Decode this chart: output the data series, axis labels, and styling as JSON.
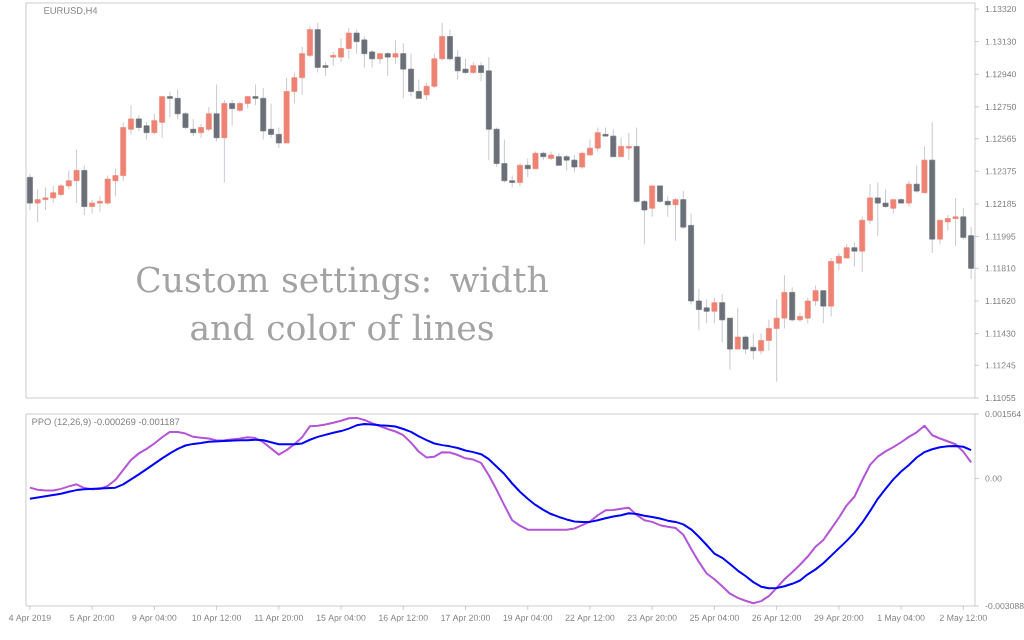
{
  "chart_data": [
    {
      "type": "candlestick",
      "title": "EURUSD,H4",
      "annotations": [
        "Custom settings: width and color of lines"
      ],
      "categories": [
        null,
        null,
        null,
        null,
        null,
        null,
        null,
        null,
        null,
        null,
        null,
        null,
        null,
        null,
        null,
        null,
        null,
        null,
        null,
        null,
        null,
        null,
        null,
        null,
        null,
        null,
        null,
        null,
        null,
        null,
        null,
        null,
        null,
        null,
        null,
        null,
        null,
        null,
        null,
        null,
        null,
        null,
        null,
        null,
        null,
        null,
        null,
        null,
        null,
        null,
        null,
        null,
        null,
        null,
        null,
        null,
        null,
        null,
        null,
        null,
        null,
        null,
        null,
        null,
        null,
        null,
        null,
        null,
        null,
        null,
        null,
        null,
        null,
        null,
        null,
        null,
        null,
        null,
        null,
        null,
        null,
        null,
        null,
        null,
        null,
        null,
        null,
        null,
        null,
        null,
        null,
        null,
        null,
        null,
        null,
        null,
        null,
        null,
        null,
        null,
        null,
        null,
        null,
        null,
        null,
        null,
        null,
        null,
        null,
        null,
        null,
        null,
        null,
        null,
        null,
        null,
        null,
        null,
        null,
        null,
        null,
        null
      ],
      "ohlc": [
        [
          1.1234,
          1.1236,
          1.1215,
          1.1219
        ],
        [
          1.1219,
          1.1227,
          1.1208,
          1.1221
        ],
        [
          1.1221,
          1.1228,
          1.1215,
          1.1222
        ],
        [
          1.1222,
          1.1229,
          1.1219,
          1.1225
        ],
        [
          1.1224,
          1.123,
          1.1223,
          1.1229
        ],
        [
          1.1229,
          1.1238,
          1.1227,
          1.1232
        ],
        [
          1.1232,
          1.125,
          1.1219,
          1.1238
        ],
        [
          1.1238,
          1.1241,
          1.1212,
          1.1217
        ],
        [
          1.1217,
          1.1221,
          1.1213,
          1.1219
        ],
        [
          1.1219,
          1.1223,
          1.1214,
          1.122
        ],
        [
          1.1219,
          1.1235,
          1.1218,
          1.1233
        ],
        [
          1.1232,
          1.1239,
          1.1223,
          1.1235
        ],
        [
          1.1235,
          1.1266,
          1.1232,
          1.1263
        ],
        [
          1.1262,
          1.1276,
          1.1259,
          1.1268
        ],
        [
          1.1268,
          1.127,
          1.1261,
          1.1263
        ],
        [
          1.1264,
          1.1266,
          1.1256,
          1.126
        ],
        [
          1.126,
          1.1271,
          1.1259,
          1.1267
        ],
        [
          1.1266,
          1.1281,
          1.1257,
          1.1281
        ],
        [
          1.1281,
          1.1284,
          1.1269,
          1.128
        ],
        [
          1.128,
          1.1285,
          1.1268,
          1.1271
        ],
        [
          1.1271,
          1.1272,
          1.1262,
          1.1263
        ],
        [
          1.1262,
          1.1268,
          1.1258,
          1.126
        ],
        [
          1.126,
          1.1265,
          1.1257,
          1.1263
        ],
        [
          1.1262,
          1.1275,
          1.1261,
          1.1271
        ],
        [
          1.1271,
          1.1288,
          1.1255,
          1.1257
        ],
        [
          1.1257,
          1.1279,
          1.1231,
          1.1277
        ],
        [
          1.1277,
          1.1279,
          1.1264,
          1.1274
        ],
        [
          1.1273,
          1.1278,
          1.1272,
          1.1277
        ],
        [
          1.1277,
          1.1281,
          1.1274,
          1.1281
        ],
        [
          1.1281,
          1.1288,
          1.1276,
          1.128
        ],
        [
          1.128,
          1.1286,
          1.1256,
          1.1261
        ],
        [
          1.1262,
          1.1277,
          1.1257,
          1.1259
        ],
        [
          1.1259,
          1.1263,
          1.1251,
          1.1254
        ],
        [
          1.1254,
          1.1292,
          1.1254,
          1.1284
        ],
        [
          1.1284,
          1.1295,
          1.1277,
          1.1292
        ],
        [
          1.1292,
          1.131,
          1.1282,
          1.1306
        ],
        [
          1.1305,
          1.1322,
          1.1304,
          1.132
        ],
        [
          1.132,
          1.1324,
          1.1295,
          1.1298
        ],
        [
          1.1299,
          1.1301,
          1.1293,
          1.1298
        ],
        [
          1.1304,
          1.1307,
          1.1299,
          1.1305
        ],
        [
          1.1304,
          1.1315,
          1.1301,
          1.1309
        ],
        [
          1.1309,
          1.1321,
          1.1303,
          1.1318
        ],
        [
          1.1318,
          1.132,
          1.1306,
          1.1313
        ],
        [
          1.1314,
          1.1316,
          1.1298,
          1.1306
        ],
        [
          1.1307,
          1.1308,
          1.1298,
          1.1303
        ],
        [
          1.1303,
          1.1306,
          1.13,
          1.1306
        ],
        [
          1.1306,
          1.1307,
          1.1293,
          1.1304
        ],
        [
          1.1304,
          1.1314,
          1.13,
          1.1306
        ],
        [
          1.1306,
          1.1312,
          1.128,
          1.1297
        ],
        [
          1.1297,
          1.1306,
          1.1281,
          1.1284
        ],
        [
          1.1284,
          1.1291,
          1.128,
          1.128
        ],
        [
          1.1282,
          1.1289,
          1.1279,
          1.1287
        ],
        [
          1.1287,
          1.1306,
          1.1286,
          1.1303
        ],
        [
          1.1303,
          1.1324,
          1.1302,
          1.1316
        ],
        [
          1.1316,
          1.132,
          1.1302,
          1.1303
        ],
        [
          1.1304,
          1.1308,
          1.1291,
          1.1296
        ],
        [
          1.1297,
          1.1303,
          1.1294,
          1.1295
        ],
        [
          1.1295,
          1.1301,
          1.1294,
          1.1299
        ],
        [
          1.1299,
          1.1301,
          1.129,
          1.1295
        ],
        [
          1.1296,
          1.1304,
          1.1244,
          1.1262
        ],
        [
          1.1262,
          1.1263,
          1.124,
          1.1242
        ],
        [
          1.1242,
          1.1256,
          1.1231,
          1.1232
        ],
        [
          1.1232,
          1.1235,
          1.1228,
          1.1231
        ],
        [
          1.1231,
          1.1242,
          1.1229,
          1.1241
        ],
        [
          1.1241,
          1.1245,
          1.1234,
          1.1239
        ],
        [
          1.1239,
          1.1249,
          1.1239,
          1.1248
        ],
        [
          1.1248,
          1.1249,
          1.1244,
          1.1246
        ],
        [
          1.1245,
          1.1249,
          1.1244,
          1.1247
        ],
        [
          1.1246,
          1.1248,
          1.1241,
          1.1241
        ],
        [
          1.1246,
          1.1247,
          1.1238,
          1.1244
        ],
        [
          1.1244,
          1.1247,
          1.1237,
          1.124
        ],
        [
          1.124,
          1.1249,
          1.1239,
          1.1248
        ],
        [
          1.1247,
          1.1256,
          1.1247,
          1.1251
        ],
        [
          1.1251,
          1.1263,
          1.1249,
          1.126
        ],
        [
          1.1259,
          1.1263,
          1.1258,
          1.1258
        ],
        [
          1.1258,
          1.1262,
          1.1246,
          1.1246
        ],
        [
          1.1246,
          1.1257,
          1.1246,
          1.1252
        ],
        [
          1.1251,
          1.126,
          1.1244,
          1.1252
        ],
        [
          1.1252,
          1.1263,
          1.1219,
          1.122
        ],
        [
          1.122,
          1.1221,
          1.1195,
          1.1215
        ],
        [
          1.1216,
          1.1229,
          1.1211,
          1.1229
        ],
        [
          1.1229,
          1.1229,
          1.1219,
          1.122
        ],
        [
          1.122,
          1.1223,
          1.1211,
          1.1218
        ],
        [
          1.1218,
          1.1222,
          1.1197,
          1.1221
        ],
        [
          1.1221,
          1.1226,
          1.1204,
          1.1205
        ],
        [
          1.1206,
          1.1213,
          1.116,
          1.1162
        ],
        [
          1.1162,
          1.1169,
          1.1145,
          1.1157
        ],
        [
          1.1158,
          1.1163,
          1.1149,
          1.1156
        ],
        [
          1.1156,
          1.1164,
          1.1149,
          1.1161
        ],
        [
          1.1161,
          1.1166,
          1.1138,
          1.1151
        ],
        [
          1.1152,
          1.1152,
          1.1122,
          1.1134
        ],
        [
          1.1134,
          1.1158,
          1.1134,
          1.1141
        ],
        [
          1.1141,
          1.1142,
          1.1131,
          1.1134
        ],
        [
          1.1135,
          1.1143,
          1.1128,
          1.1133
        ],
        [
          1.1133,
          1.1143,
          1.1131,
          1.1139
        ],
        [
          1.1139,
          1.1151,
          1.1133,
          1.1146
        ],
        [
          1.1146,
          1.1163,
          1.1115,
          1.1152
        ],
        [
          1.1152,
          1.1177,
          1.1146,
          1.1167
        ],
        [
          1.1167,
          1.117,
          1.115,
          1.1151
        ],
        [
          1.1151,
          1.1155,
          1.115,
          1.1153
        ],
        [
          1.1152,
          1.1164,
          1.1149,
          1.1162
        ],
        [
          1.1162,
          1.1171,
          1.1159,
          1.1168
        ],
        [
          1.1168,
          1.1168,
          1.1149,
          1.1159
        ],
        [
          1.1159,
          1.1187,
          1.1153,
          1.1185
        ],
        [
          1.1184,
          1.119,
          1.118,
          1.1188
        ],
        [
          1.1187,
          1.1195,
          1.1187,
          1.1193
        ],
        [
          1.1193,
          1.1196,
          1.1182,
          1.1191
        ],
        [
          1.1191,
          1.1211,
          1.1179,
          1.1209
        ],
        [
          1.1209,
          1.123,
          1.1207,
          1.1222
        ],
        [
          1.1222,
          1.1231,
          1.12,
          1.1219
        ],
        [
          1.1219,
          1.1227,
          1.1216,
          1.1217
        ],
        [
          1.1216,
          1.1221,
          1.1213,
          1.1221
        ],
        [
          1.1221,
          1.1222,
          1.1219,
          1.1219
        ],
        [
          1.1219,
          1.1232,
          1.1217,
          1.123
        ],
        [
          1.123,
          1.1241,
          1.1225,
          1.1226
        ],
        [
          1.1225,
          1.1252,
          1.1225,
          1.1244
        ],
        [
          1.1244,
          1.1266,
          1.119,
          1.1198
        ],
        [
          1.1198,
          1.1209,
          1.1195,
          1.1209
        ],
        [
          1.1208,
          1.1212,
          1.1203,
          1.121
        ],
        [
          1.121,
          1.1222,
          1.1194,
          1.1211
        ],
        [
          1.1211,
          1.1216,
          1.1198,
          1.1199
        ],
        [
          1.12,
          1.1205,
          1.1175,
          1.1181
        ]
      ],
      "colors": [
        "#6b7078",
        "#ee8374",
        "#ee8374",
        "#ee8374",
        "#ee8374",
        "#ee8374",
        "#ee8374",
        "#6b7078",
        "#ee8374",
        "#ee8374",
        "#ee8374",
        "#ee8374",
        "#ee8374",
        "#ee8374",
        "#6b7078",
        "#6b7078",
        "#ee8374",
        "#ee8374",
        "#6b7078",
        "#6b7078",
        "#6b7078",
        "#6b7078",
        "#ee8374",
        "#ee8374",
        "#6b7078",
        "#ee8374",
        "#6b7078",
        "#ee8374",
        "#ee8374",
        "#6b7078",
        "#6b7078",
        "#6b7078",
        "#6b7078",
        "#ee8374",
        "#ee8374",
        "#ee8374",
        "#ee8374",
        "#6b7078",
        "#6b7078",
        "#ee8374",
        "#ee8374",
        "#ee8374",
        "#6b7078",
        "#6b7078",
        "#6b7078",
        "#ee8374",
        "#6b7078",
        "#ee8374",
        "#6b7078",
        "#6b7078",
        "#6b7078",
        "#ee8374",
        "#ee8374",
        "#ee8374",
        "#6b7078",
        "#6b7078",
        "#6b7078",
        "#ee8374",
        "#6b7078",
        "#6b7078",
        "#6b7078",
        "#6b7078",
        "#6b7078",
        "#ee8374",
        "#6b7078",
        "#ee8374",
        "#6b7078",
        "#ee8374",
        "#6b7078",
        "#6b7078",
        "#6b7078",
        "#ee8374",
        "#ee8374",
        "#ee8374",
        "#6b7078",
        "#6b7078",
        "#ee8374",
        "#ee8374",
        "#6b7078",
        "#6b7078",
        "#ee8374",
        "#6b7078",
        "#6b7078",
        "#ee8374",
        "#6b7078",
        "#6b7078",
        "#6b7078",
        "#6b7078",
        "#ee8374",
        "#6b7078",
        "#6b7078",
        "#ee8374",
        "#6b7078",
        "#6b7078",
        "#ee8374",
        "#ee8374",
        "#ee8374",
        "#ee8374",
        "#6b7078",
        "#ee8374",
        "#ee8374",
        "#ee8374",
        "#6b7078",
        "#ee8374",
        "#ee8374",
        "#ee8374",
        "#6b7078",
        "#ee8374",
        "#ee8374",
        "#6b7078",
        "#6b7078",
        "#ee8374",
        "#6b7078",
        "#ee8374",
        "#6b7078",
        "#ee8374",
        "#6b7078",
        "#ee8374",
        "#ee8374",
        "#ee8374",
        "#6b7078",
        "#6b7078"
      ],
      "ylim": [
        1.11055,
        1.13355
      ],
      "yticks": [
        {
          "value": 1.11055,
          "label": "1.11055"
        },
        {
          "value": 1.11245,
          "label": "1.11245"
        },
        {
          "value": 1.1143,
          "label": "1.11430"
        },
        {
          "value": 1.1162,
          "label": "1.11620"
        },
        {
          "value": 1.1181,
          "label": "1.11810"
        },
        {
          "value": 1.11995,
          "label": "1.11995"
        },
        {
          "value": 1.12185,
          "label": "1.12185"
        },
        {
          "value": 1.12375,
          "label": "1.12375"
        },
        {
          "value": 1.12565,
          "label": "1.12565"
        },
        {
          "value": 1.1275,
          "label": "1.12750"
        },
        {
          "value": 1.1294,
          "label": "1.12940"
        },
        {
          "value": 1.1313,
          "label": "1.13130"
        },
        {
          "value": 1.1332,
          "label": "1.13320"
        }
      ],
      "tick_labels": "y"
    },
    {
      "type": "line",
      "title": "PPO (12,26,9) -0.000269 -0.001187",
      "categories": [
        "4 Apr 2019",
        null,
        null,
        null,
        null,
        null,
        null,
        null,
        "5 Apr 20:00",
        null,
        null,
        null,
        null,
        null,
        null,
        null,
        "9 Apr 04:00",
        null,
        null,
        null,
        null,
        null,
        null,
        null,
        "10 Apr 12:00",
        null,
        null,
        null,
        null,
        null,
        null,
        null,
        "11 Apr 20:00",
        null,
        null,
        null,
        null,
        null,
        null,
        null,
        "15 Apr 04:00",
        null,
        null,
        null,
        null,
        null,
        null,
        null,
        "16 Apr 12:00",
        null,
        null,
        null,
        null,
        null,
        null,
        null,
        "17 Apr 20:00",
        null,
        null,
        null,
        null,
        null,
        null,
        null,
        "19 Apr 04:00",
        null,
        null,
        null,
        null,
        null,
        null,
        null,
        "22 Apr 12:00",
        null,
        null,
        null,
        null,
        null,
        null,
        null,
        "23 Apr 20:00",
        null,
        null,
        null,
        null,
        null,
        null,
        null,
        "25 Apr 04:00",
        null,
        null,
        null,
        null,
        null,
        null,
        null,
        "26 Apr 12:00",
        null,
        null,
        null,
        null,
        null,
        null,
        null,
        "29 Apr 20:00",
        null,
        null,
        null,
        null,
        null,
        null,
        null,
        "1 May 04:00",
        null,
        null,
        null,
        null,
        null,
        null,
        null,
        "2 May 12:00",
        null
      ],
      "series": [
        {
          "color": "#b455d8",
          "values": [
            -0.00022,
            -0.00027,
            -0.00029,
            -0.00029,
            -0.00025,
            -0.00019,
            -0.00014,
            -0.00023,
            -0.00026,
            -0.00025,
            -0.00018,
            -3e-05,
            0.00021,
            0.00045,
            0.00061,
            0.00072,
            0.00085,
            0.001,
            0.00113,
            0.00113,
            0.00109,
            0.00101,
            0.00099,
            0.00097,
            0.00092,
            0.00093,
            0.00095,
            0.00097,
            0.001,
            0.00098,
            0.00088,
            0.00073,
            0.00058,
            0.00069,
            0.00083,
            0.001,
            0.00127,
            0.00128,
            0.00131,
            0.00135,
            0.0014,
            0.00146,
            0.00147,
            0.00142,
            0.00134,
            0.00127,
            0.0012,
            0.00114,
            0.00105,
            0.00087,
            0.00065,
            0.00051,
            0.00053,
            0.00064,
            0.00063,
            0.00057,
            0.00049,
            0.00046,
            0.00038,
            8e-05,
            -0.00027,
            -0.00065,
            -0.00101,
            -0.00114,
            -0.00124,
            -0.00124,
            -0.00124,
            -0.00124,
            -0.00124,
            -0.00124,
            -0.00121,
            -0.00113,
            -0.00104,
            -0.00089,
            -0.00077,
            -0.00076,
            -0.00073,
            -0.00071,
            -0.00088,
            -0.00101,
            -0.00105,
            -0.00113,
            -0.00117,
            -0.0012,
            -0.00136,
            -0.0017,
            -0.00202,
            -0.0023,
            -0.00244,
            -0.00261,
            -0.00279,
            -0.00289,
            -0.00296,
            -0.00302,
            -0.00297,
            -0.00285,
            -0.00265,
            -0.00244,
            -0.00227,
            -0.00209,
            -0.00189,
            -0.00165,
            -0.00149,
            -0.00122,
            -0.00095,
            -0.00065,
            -0.00044,
            -4e-05,
            0.00033,
            0.00053,
            0.00066,
            0.00076,
            0.00088,
            0.00101,
            0.00112,
            0.00128,
            0.00105,
            0.00097,
            0.0009,
            0.00083,
            0.00065,
            0.00039
          ]
        },
        {
          "color": "#0000ff",
          "values": [
            -0.00049,
            -0.00046,
            -0.00043,
            -0.0004,
            -0.00037,
            -0.00032,
            -0.00028,
            -0.00026,
            -0.00025,
            -0.00024,
            -0.00023,
            -0.00022,
            -0.00014,
            -2e-05,
            0.0001,
            0.00023,
            0.00036,
            0.00049,
            0.00061,
            0.00072,
            0.0008,
            0.00084,
            0.00086,
            0.00089,
            0.0009,
            0.00091,
            0.00092,
            0.00093,
            0.00093,
            0.00094,
            0.00093,
            0.00088,
            0.00083,
            0.00083,
            0.00083,
            0.00085,
            0.00094,
            0.00101,
            0.00106,
            0.00111,
            0.00115,
            0.00121,
            0.00129,
            0.00132,
            0.00131,
            0.00129,
            0.00128,
            0.00126,
            0.0012,
            0.00113,
            0.00102,
            0.00093,
            0.00085,
            0.00081,
            0.00078,
            0.00074,
            0.00068,
            0.00064,
            0.00059,
            0.00047,
            0.00029,
            0.00011,
            -0.00012,
            -0.00032,
            -0.00049,
            -0.00064,
            -0.00076,
            -0.00086,
            -0.00093,
            -0.00099,
            -0.00104,
            -0.00105,
            -0.00105,
            -0.00101,
            -0.00096,
            -0.00092,
            -0.00089,
            -0.00084,
            -0.00086,
            -0.0009,
            -0.00093,
            -0.00097,
            -0.00102,
            -0.00105,
            -0.00111,
            -0.00123,
            -0.00141,
            -0.00161,
            -0.00182,
            -0.00192,
            -0.00207,
            -0.00223,
            -0.00236,
            -0.00251,
            -0.00262,
            -0.00266,
            -0.00265,
            -0.00261,
            -0.00255,
            -0.00247,
            -0.00232,
            -0.0022,
            -0.00205,
            -0.00187,
            -0.00169,
            -0.00151,
            -0.00131,
            -0.00107,
            -0.00079,
            -0.00049,
            -0.00025,
            -2e-05,
            0.00017,
            0.00033,
            0.00051,
            0.00064,
            0.00071,
            0.00076,
            0.00078,
            0.00079,
            0.00077,
            0.00069
          ]
        }
      ],
      "ylim": [
        -0.003088,
        0.001564
      ],
      "yticks": [
        -0.003088,
        {
          "value": 0,
          "label": "0.00"
        },
        0.001564
      ]
    }
  ]
}
